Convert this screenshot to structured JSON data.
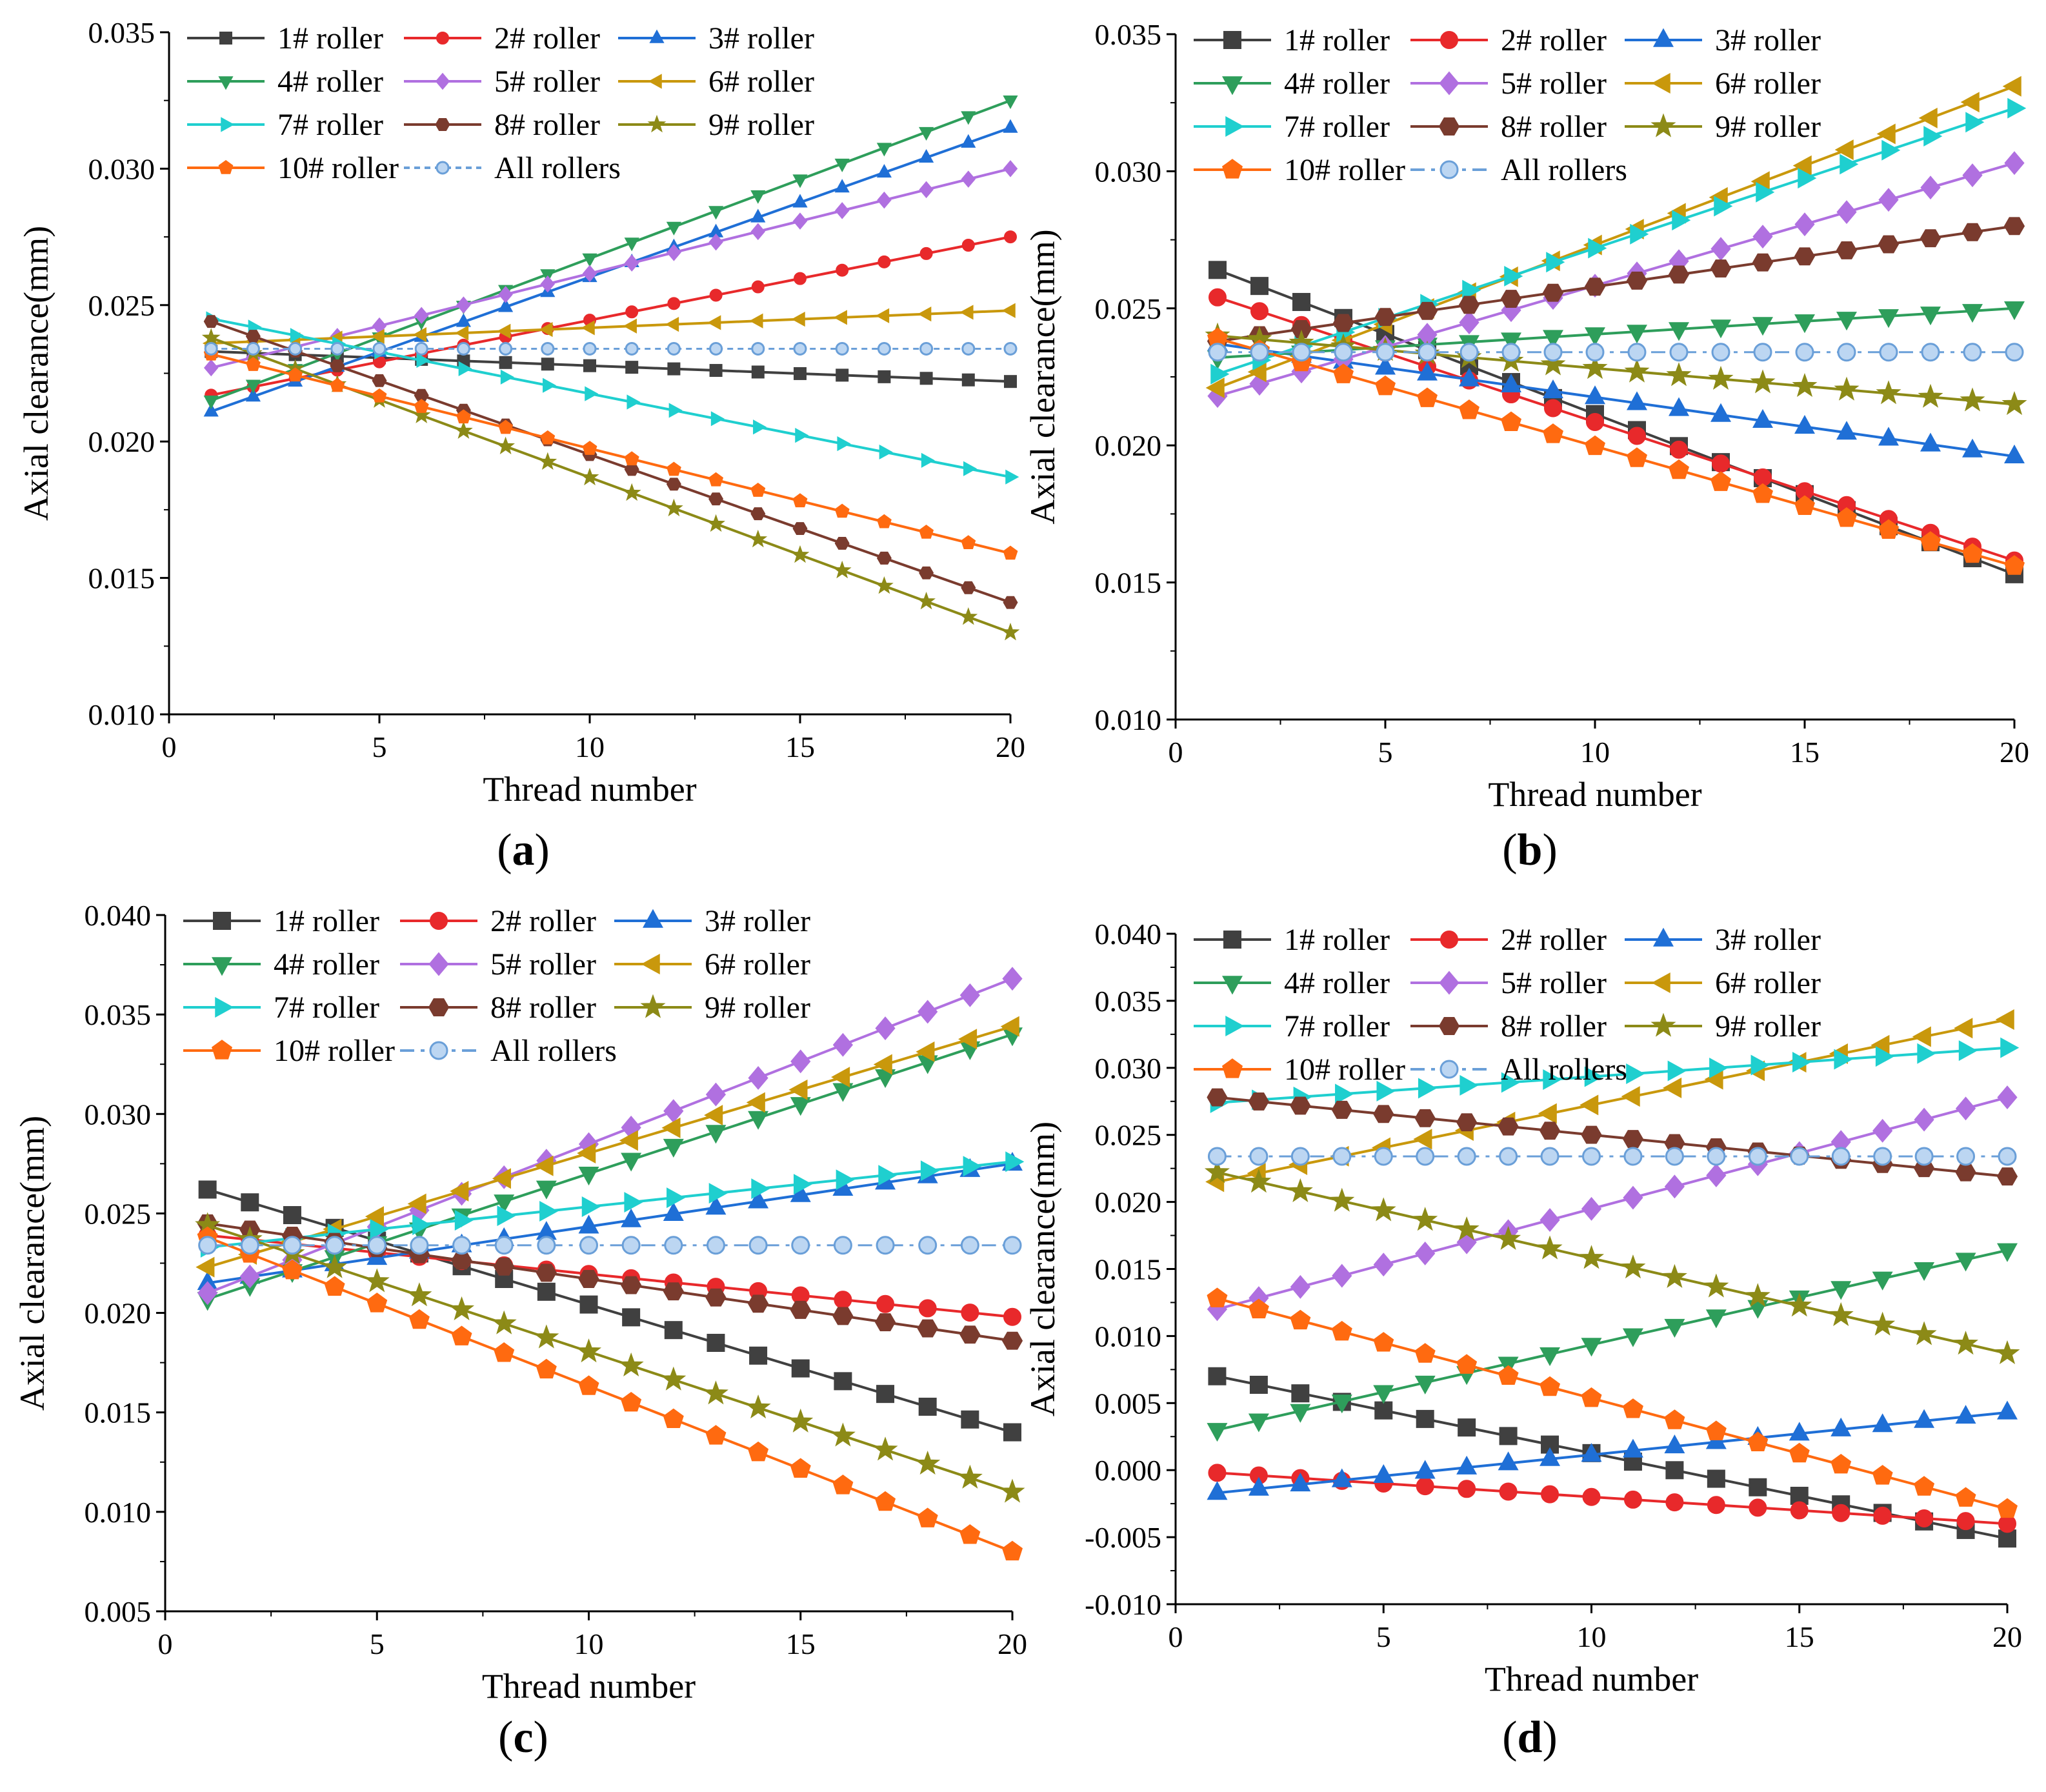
{
  "figure": {
    "x_axis_title": "Thread number",
    "y_axis_title": "Axial clearance(mm)",
    "roller_names": [
      "1# roller",
      "2# roller",
      "3# roller",
      "4# roller",
      "5# roller",
      "6# roller",
      "7# roller",
      "8# roller",
      "9# roller",
      "10# roller",
      "All rollers"
    ],
    "series_colors": [
      "#404040",
      "#e8292b",
      "#1f6fd6",
      "#2e9e5b",
      "#b070e0",
      "#c9980c",
      "#1fcfcf",
      "#7a3b2e",
      "#8c8a17",
      "#ff6a10",
      "#6a9fd8"
    ],
    "marker_types": [
      "square",
      "circle",
      "triangle-up",
      "triangle-down",
      "diamond",
      "triangle-left",
      "triangle-right",
      "hexagon",
      "star",
      "pentagon",
      "circle-open"
    ]
  },
  "chart_data": [
    {
      "type": "line",
      "panel_label": "a",
      "xlabel": "Thread number",
      "ylabel": "Axial clearance(mm)",
      "xlim": [
        0,
        20
      ],
      "ylim": [
        0.01,
        0.035
      ],
      "x_ticks": [
        "0",
        "5",
        "10",
        "15",
        "20"
      ],
      "y_ticks": [
        "0.010",
        "0.015",
        "0.020",
        "0.025",
        "0.030",
        "0.035"
      ],
      "x": [
        1,
        20
      ],
      "series": [
        {
          "name": "1# roller",
          "start": 0.0233,
          "end": 0.0222
        },
        {
          "name": "2# roller",
          "start": 0.0217,
          "end": 0.0275
        },
        {
          "name": "3# roller",
          "start": 0.0211,
          "end": 0.0315
        },
        {
          "name": "4# roller",
          "start": 0.0215,
          "end": 0.0325
        },
        {
          "name": "5# roller",
          "start": 0.0227,
          "end": 0.03
        },
        {
          "name": "6# roller",
          "start": 0.0236,
          "end": 0.0248
        },
        {
          "name": "7# roller",
          "start": 0.0245,
          "end": 0.0187
        },
        {
          "name": "8# roller",
          "start": 0.0244,
          "end": 0.0141
        },
        {
          "name": "9# roller",
          "start": 0.0238,
          "end": 0.013
        },
        {
          "name": "10# roller",
          "start": 0.0232,
          "end": 0.0159
        },
        {
          "name": "All rollers",
          "start": 0.0234,
          "end": 0.0234
        }
      ]
    },
    {
      "type": "line",
      "panel_label": "b",
      "xlabel": "Thread number",
      "ylabel": "Axial clearance(mm)",
      "xlim": [
        0,
        20
      ],
      "ylim": [
        0.01,
        0.035
      ],
      "x_ticks": [
        "0",
        "5",
        "10",
        "15",
        "20"
      ],
      "y_ticks": [
        "0.010",
        "0.015",
        "0.020",
        "0.025",
        "0.030",
        "0.035"
      ],
      "x": [
        1,
        20
      ],
      "series": [
        {
          "name": "1# roller",
          "start": 0.0264,
          "end": 0.0153
        },
        {
          "name": "2# roller",
          "start": 0.0254,
          "end": 0.0158
        },
        {
          "name": "3# roller",
          "start": 0.0237,
          "end": 0.0196
        },
        {
          "name": "4# roller",
          "start": 0.0232,
          "end": 0.025
        },
        {
          "name": "5# roller",
          "start": 0.0218,
          "end": 0.0303
        },
        {
          "name": "6# roller",
          "start": 0.0221,
          "end": 0.0331
        },
        {
          "name": "7# roller",
          "start": 0.0226,
          "end": 0.0323
        },
        {
          "name": "8# roller",
          "start": 0.0238,
          "end": 0.028
        },
        {
          "name": "9# roller",
          "start": 0.024,
          "end": 0.0215
        },
        {
          "name": "10# roller",
          "start": 0.0239,
          "end": 0.0156
        },
        {
          "name": "All rollers",
          "start": 0.0234,
          "end": 0.0234
        }
      ]
    },
    {
      "type": "line",
      "panel_label": "c",
      "xlabel": "Thread number",
      "ylabel": "Axial clearance(mm)",
      "xlim": [
        0,
        20
      ],
      "ylim": [
        0.005,
        0.04
      ],
      "x_ticks": [
        "0",
        "5",
        "10",
        "15",
        "20"
      ],
      "y_ticks": [
        "0.005",
        "0.010",
        "0.015",
        "0.020",
        "0.025",
        "0.030",
        "0.035",
        "0.040"
      ],
      "x": [
        1,
        20
      ],
      "series": [
        {
          "name": "1# roller",
          "start": 0.0262,
          "end": 0.014
        },
        {
          "name": "2# roller",
          "start": 0.0239,
          "end": 0.0198
        },
        {
          "name": "3# roller",
          "start": 0.0215,
          "end": 0.0275
        },
        {
          "name": "4# roller",
          "start": 0.0207,
          "end": 0.034
        },
        {
          "name": "5# roller",
          "start": 0.021,
          "end": 0.0368
        },
        {
          "name": "6# roller",
          "start": 0.0223,
          "end": 0.0344
        },
        {
          "name": "7# roller",
          "start": 0.0233,
          "end": 0.0276
        },
        {
          "name": "8# roller",
          "start": 0.0245,
          "end": 0.0186
        },
        {
          "name": "9# roller",
          "start": 0.0244,
          "end": 0.011
        },
        {
          "name": "10# roller",
          "start": 0.0238,
          "end": 0.008
        },
        {
          "name": "All rollers",
          "start": 0.0234,
          "end": 0.0234
        }
      ]
    },
    {
      "type": "line",
      "panel_label": "d",
      "xlabel": "Thread number",
      "ylabel": "Axial clearance(mm)",
      "xlim": [
        0,
        20
      ],
      "ylim": [
        -0.01,
        0.04
      ],
      "x_ticks": [
        "0",
        "5",
        "10",
        "15",
        "20"
      ],
      "y_ticks": [
        "-0.010",
        "-0.005",
        "0.000",
        "0.005",
        "0.010",
        "0.015",
        "0.020",
        "0.025",
        "0.030",
        "0.035",
        "0.040"
      ],
      "x": [
        1,
        20
      ],
      "series": [
        {
          "name": "1# roller",
          "start": 0.007,
          "end": -0.0051
        },
        {
          "name": "2# roller",
          "start": -0.0002,
          "end": -0.004
        },
        {
          "name": "3# roller",
          "start": -0.0017,
          "end": 0.0043
        },
        {
          "name": "4# roller",
          "start": 0.003,
          "end": 0.0164
        },
        {
          "name": "5# roller",
          "start": 0.012,
          "end": 0.0278
        },
        {
          "name": "6# roller",
          "start": 0.0215,
          "end": 0.0336
        },
        {
          "name": "7# roller",
          "start": 0.0274,
          "end": 0.0315
        },
        {
          "name": "8# roller",
          "start": 0.0278,
          "end": 0.0219
        },
        {
          "name": "9# roller",
          "start": 0.0222,
          "end": 0.0087
        },
        {
          "name": "10# roller",
          "start": 0.0128,
          "end": -0.0029
        },
        {
          "name": "All rollers",
          "start": 0.0234,
          "end": 0.0234
        }
      ]
    }
  ]
}
